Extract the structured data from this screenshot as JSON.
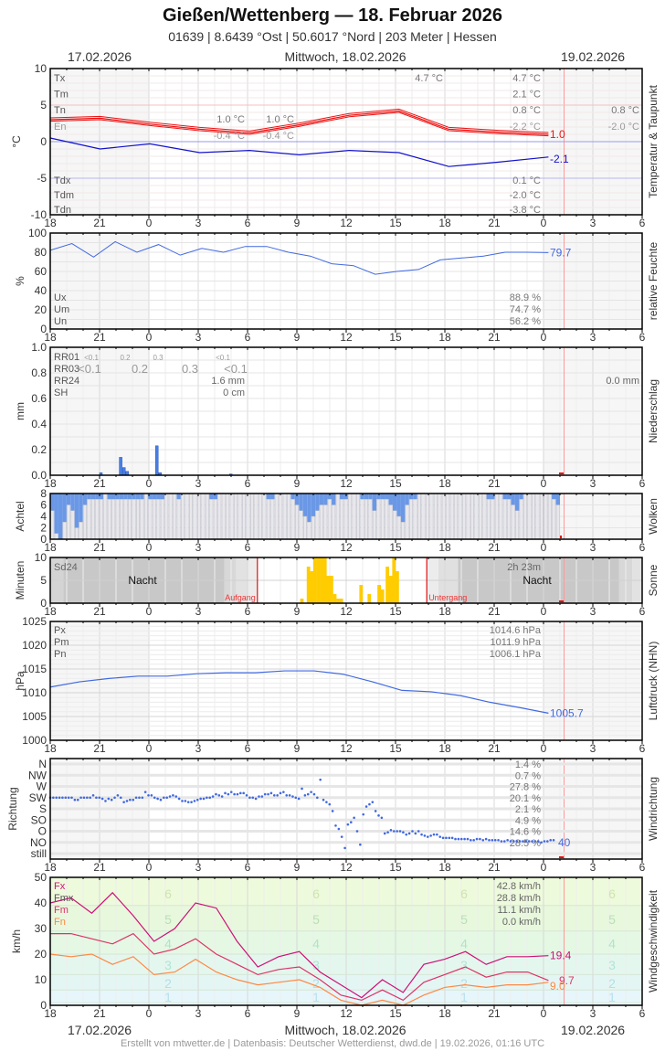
{
  "header": {
    "title": "Gießen/Wettenberg  —  18. Februar 2026",
    "subtitle": "01639  |  8.6439 °Ost  |  50.6017 °Nord  |  203 Meter  |  Hessen",
    "date_left": "17.02.2026",
    "date_center": "Mittwoch, 18.02.2026",
    "date_right": "19.02.2026"
  },
  "footer": {
    "text": "Erstellt von mtwetter.de | Datenbasis: Deutscher Wetterdienst, dwd.de | 19.02.2026, 01:16 UTC"
  },
  "x_ticks": [
    "18",
    "21",
    "0",
    "3",
    "6",
    "9",
    "12",
    "15",
    "18",
    "21",
    "0",
    "3",
    "6"
  ],
  "colors": {
    "temp": "#ee1111",
    "dew": "#1111cc",
    "blue_line": "#4169e1",
    "sun": "#ffcc00",
    "gust": "#cc1177",
    "mean_wind": "#dd3366",
    "min_wind": "#ff8844",
    "now_line": "#ff9999"
  },
  "chart_data": [
    {
      "type": "line",
      "title": "Temperatur & Taupunkt",
      "ylabel": "°C",
      "ylim": [
        -10,
        10
      ],
      "yticks": [
        "10",
        "5",
        "0",
        "-5",
        "-10"
      ],
      "x": [
        "18",
        "21",
        "0",
        "3",
        "6",
        "9",
        "12",
        "15",
        "18",
        "21",
        "0",
        "3",
        "6"
      ],
      "series": [
        {
          "name": "Temperatur",
          "values": [
            3.0,
            3.2,
            2.4,
            1.7,
            1.2,
            2.3,
            3.6,
            4.2,
            1.7,
            1.3,
            1.0
          ],
          "last_label": "1.0"
        },
        {
          "name": "Taupunkt",
          "values": [
            0.5,
            -1.0,
            -0.3,
            -1.5,
            -1.2,
            -1.8,
            -1.2,
            -1.5,
            -3.4,
            -2.8,
            -2.1
          ],
          "last_label": "-2.1"
        }
      ],
      "stats_labels": [
        "Tx",
        "Tm",
        "Tn",
        "En"
      ],
      "stats_day1": {
        "Tn": "1.0 °C",
        "En": "-0.4 °C"
      },
      "stats_day1b": {
        "Tn": "1.0 °C",
        "En": "-0.4 °C"
      },
      "stats_tx_peak": "4.7 °C",
      "stats_day2": {
        "Tx": "4.7 °C",
        "Tm": "2.1 °C",
        "Tn": "0.8 °C",
        "En": "-2.2 °C"
      },
      "stats_day3": {
        "Tn": "0.8 °C",
        "En": "-2.0 °C"
      },
      "dew_labels": [
        "Tdx",
        "Tdm",
        "Tdn"
      ],
      "dew_stats": {
        "Tdx": "0.1 °C",
        "Tdm": "-2.0 °C",
        "Tdn": "-3.8 °C"
      }
    },
    {
      "type": "line",
      "title": "relative Feuchte",
      "ylabel": "%",
      "ylim": [
        0,
        100
      ],
      "yticks": [
        "100",
        "80",
        "60",
        "40",
        "20",
        "0"
      ],
      "series": [
        {
          "name": "Feuchte",
          "values": [
            82,
            89,
            75,
            91,
            80,
            88,
            77,
            84,
            80,
            86,
            86,
            80,
            76,
            68,
            66,
            57,
            60,
            62,
            72,
            74,
            76,
            80,
            80,
            79.7
          ],
          "last_label": "79.7"
        }
      ],
      "stats_labels": [
        "Ux",
        "Um",
        "Un"
      ],
      "stats": {
        "Ux": "88.9 %",
        "Um": "74.7 %",
        "Un": "56.2 %"
      }
    },
    {
      "type": "bar",
      "title": "Niederschlag",
      "ylabel": "mm",
      "ylim": [
        0,
        1.0
      ],
      "yticks": [
        "1.0",
        "0.8",
        "0.6",
        "0.4",
        "0.2",
        "0.0"
      ],
      "bars": [
        {
          "h": 21.0,
          "v": 0.02
        },
        {
          "h": 22.2,
          "v": 0.14
        },
        {
          "h": 22.4,
          "v": 0.06
        },
        {
          "h": 22.6,
          "v": 0.03
        },
        {
          "h": 0.4,
          "v": 0.23
        },
        {
          "h": 0.6,
          "v": 0.02
        },
        {
          "h": 4.9,
          "v": 0.01
        }
      ],
      "rr01_label": "RR01",
      "rr01_values": [
        "<0.1",
        "0.2",
        "0.3",
        "<0.1"
      ],
      "rr03_label": "RR03",
      "rr03_values": [
        "<0.1",
        "0.2",
        "0.3",
        "<0.1"
      ],
      "rr24_label": "RR24",
      "rr24_value": "1.6 mm",
      "sh_label": "SH",
      "sh_value": "0 cm",
      "day3_value": "0.0 mm"
    },
    {
      "type": "bar",
      "title": "Wolken",
      "ylabel": "Achtel",
      "ylim": [
        0,
        8
      ],
      "yticks": [
        "8",
        "6",
        "4",
        "2",
        "0"
      ]
    },
    {
      "type": "bar",
      "title": "Sonne",
      "ylabel": "Minuten",
      "ylim": [
        0,
        10
      ],
      "yticks": [
        "10",
        "5",
        "0"
      ],
      "sd24_label": "Sd24",
      "sd24_value": "2h 23m",
      "night_label": "Nacht",
      "sunrise_label": "Aufgang",
      "sunset_label": "Untergang",
      "bars": [
        [
          9.2,
          1
        ],
        [
          9.6,
          8
        ],
        [
          9.8,
          7
        ],
        [
          10.0,
          10
        ],
        [
          10.2,
          10
        ],
        [
          10.4,
          10
        ],
        [
          10.6,
          10
        ],
        [
          10.8,
          6
        ],
        [
          11.0,
          6
        ],
        [
          11.2,
          2
        ],
        [
          11.4,
          1
        ],
        [
          11.6,
          1
        ],
        [
          12.8,
          4
        ],
        [
          13.3,
          2
        ],
        [
          13.9,
          4
        ],
        [
          14.1,
          3
        ],
        [
          14.4,
          8
        ],
        [
          14.6,
          6
        ],
        [
          14.8,
          10
        ],
        [
          15.0,
          7
        ]
      ]
    },
    {
      "type": "line",
      "title": "Luftdruck (NHN)",
      "ylabel": "hPa",
      "ylim": [
        1000,
        1025
      ],
      "yticks": [
        "1025",
        "1020",
        "1015",
        "1010",
        "1005",
        "1000"
      ],
      "series": [
        {
          "name": "Luftdruck",
          "values": [
            1011.2,
            1012.3,
            1013.0,
            1013.5,
            1013.5,
            1014.0,
            1014.2,
            1014.2,
            1014.6,
            1014.6,
            1013.9,
            1012.3,
            1010.5,
            1010.2,
            1009.4,
            1008.0,
            1006.9,
            1005.7
          ],
          "last_label": "1005.7"
        }
      ],
      "stats_labels": [
        "Px",
        "Pm",
        "Pn"
      ],
      "stats": {
        "Px": "1014.6 hPa",
        "Pm": "1011.9 hPa",
        "Pn": "1006.1 hPa"
      }
    },
    {
      "type": "scatter",
      "title": "Windrichtung",
      "ylabel": "Richtung",
      "categories": [
        "N",
        "NW",
        "W",
        "SW",
        "S",
        "SO",
        "O",
        "NO",
        "still"
      ],
      "percentages": [
        "1.4 %",
        "0.7 %",
        "27.8 %",
        "20.1 %",
        "2.1 %",
        "4.9 %",
        "14.6 %",
        "28.5 %",
        ""
      ],
      "last_label": "40"
    },
    {
      "type": "line",
      "title": "Windgeschwindigkeit",
      "ylabel": "km/h",
      "ylim": [
        0,
        50
      ],
      "yticks": [
        "50",
        "40",
        "30",
        "20",
        "10",
        "0"
      ],
      "beaufort_labels": [
        "6",
        "5",
        "4",
        "3",
        "2",
        "1"
      ],
      "series": [
        {
          "name": "Fx",
          "values": [
            40,
            42,
            36,
            44,
            35,
            25,
            30,
            40,
            38,
            25,
            15,
            19,
            21,
            13,
            8,
            3,
            10,
            5,
            16,
            18,
            21,
            16,
            19,
            19,
            19.4
          ],
          "last_label": "19.4"
        },
        {
          "name": "Fm",
          "values": [
            28,
            28,
            26,
            24,
            28,
            20,
            22,
            26,
            20,
            16,
            12,
            14,
            15,
            10,
            4,
            2,
            6,
            2,
            9,
            12,
            15,
            11,
            13,
            13,
            9.7
          ],
          "last_label": "9.7"
        },
        {
          "name": "Fn",
          "values": [
            20,
            19,
            20,
            16,
            19,
            12,
            13,
            18,
            13,
            10,
            8,
            9,
            10,
            7,
            2,
            0,
            2,
            0,
            4,
            7,
            8,
            7,
            8,
            8,
            9.0
          ],
          "last_label": "9.0"
        }
      ],
      "stats_labels": [
        "Fx",
        "Fmx",
        "Fm",
        "Fn"
      ],
      "stats": {
        "Fx": "42.8 km/h",
        "Fmx": "28.8 km/h",
        "Fm": "11.1 km/h",
        "Fn": "0.0 km/h"
      }
    }
  ]
}
